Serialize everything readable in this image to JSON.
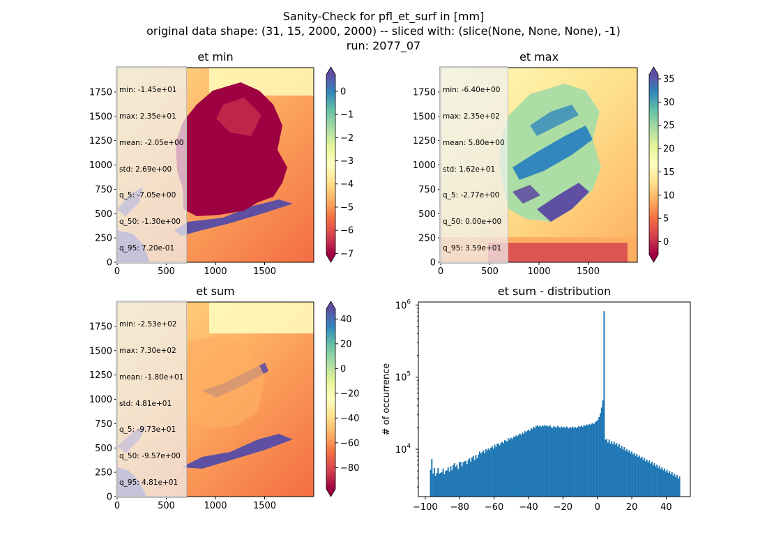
{
  "figure": {
    "title_lines": [
      "Sanity-Check for pfl_et_surf in [mm]",
      "original data shape: (31, 15, 2000, 2000) -- sliced with: (slice(None, None, None), -1)",
      "run: 2077_07"
    ]
  },
  "colors": {
    "spectral": [
      "#9e0142",
      "#d53e4f",
      "#f46d43",
      "#fdae61",
      "#fee08b",
      "#ffffbf",
      "#e6f598",
      "#abdda4",
      "#66c2a5",
      "#3288bd",
      "#5e4fa2"
    ],
    "histogram_bar": "#1f77b4"
  },
  "chart_data": [
    {
      "type": "heatmap",
      "title": "et min",
      "xlim": [
        0,
        2000
      ],
      "ylim": [
        0,
        2000
      ],
      "xticks": [
        "0",
        "500",
        "1000",
        "1500"
      ],
      "yticks": [
        "0",
        "250",
        "500",
        "750",
        "1000",
        "1250",
        "1500",
        "1750"
      ],
      "colorbar": {
        "min": -7.05,
        "max": 0.72,
        "cmap": "Spectral",
        "extend": "both",
        "ticks": [
          0,
          -1,
          -2,
          -3,
          -4,
          -5,
          -6,
          -7
        ],
        "tick_labels": [
          "0",
          "−1",
          "−2",
          "−3",
          "−4",
          "−5",
          "−6",
          "−7"
        ]
      },
      "stats": [
        "min: -1.45e+01",
        "max: 2.35e+01",
        "mean: -2.05e+00",
        "std: 2.69e+00",
        "q_5: -7.05e+00",
        "q_50: -1.30e+00",
        "q_95: 7.20e-01"
      ]
    },
    {
      "type": "heatmap",
      "title": "et max",
      "xlim": [
        0,
        2000
      ],
      "ylim": [
        0,
        2000
      ],
      "xticks": [
        "0",
        "500",
        "1000",
        "1500"
      ],
      "yticks": [
        "0",
        "250",
        "500",
        "750",
        "1000",
        "1250",
        "1500",
        "1750"
      ],
      "colorbar": {
        "min": -2.77,
        "max": 35.9,
        "cmap": "Spectral",
        "extend": "both",
        "ticks": [
          35,
          30,
          25,
          20,
          15,
          10,
          5,
          0
        ],
        "tick_labels": [
          "35",
          "30",
          "25",
          "20",
          "15",
          "10",
          "5",
          "0"
        ]
      },
      "stats": [
        "min: -6.40e+00",
        "max: 2.35e+02",
        "mean: 5.80e+00",
        "std: 1.62e+01",
        "q_5: -2.77e+00",
        "q_50: 0.00e+00",
        "q_95: 3.59e+01"
      ]
    },
    {
      "type": "heatmap",
      "title": "et sum",
      "xlim": [
        0,
        2000
      ],
      "ylim": [
        0,
        2000
      ],
      "xticks": [
        "0",
        "500",
        "1000",
        "1500"
      ],
      "yticks": [
        "0",
        "250",
        "500",
        "750",
        "1000",
        "1250",
        "1500",
        "1750"
      ],
      "colorbar": {
        "min": -97.3,
        "max": 48.1,
        "cmap": "Spectral",
        "extend": "both",
        "ticks": [
          40,
          20,
          0,
          -20,
          -40,
          -60,
          -80
        ],
        "tick_labels": [
          "40",
          "20",
          "0",
          "−20",
          "−40",
          "−60",
          "−80"
        ]
      },
      "stats": [
        "min: -2.53e+02",
        "max: 7.30e+02",
        "mean: -1.80e+01",
        "std: 4.81e+01",
        "q_5: -9.73e+01",
        "q_50: -9.57e+00",
        "q_95: 4.81e+01"
      ]
    },
    {
      "type": "bar",
      "title": "et sum - distribution",
      "ylabel": "# of occurrence",
      "xlabel": "",
      "xlim": [
        -104,
        54
      ],
      "ylog": true,
      "ylim": [
        2200,
        1100000
      ],
      "xticks": [
        -100,
        -80,
        -60,
        -40,
        -20,
        0,
        20,
        40
      ],
      "xtick_labels": [
        "−100",
        "−80",
        "−60",
        "−40",
        "−20",
        "0",
        "20",
        "40"
      ],
      "yticks": [
        10000,
        100000,
        1000000
      ],
      "ytick_labels": [
        [
          "10",
          "4"
        ],
        [
          "10",
          "5"
        ],
        [
          "10",
          "6"
        ]
      ],
      "bins": {
        "start": -97.3,
        "end": 48.1
      },
      "counts": [
        5200,
        7300,
        4600,
        5500,
        4300,
        4700,
        5500,
        4600,
        4700,
        4800,
        5400,
        4500,
        5000,
        5100,
        5600,
        4900,
        5800,
        5100,
        6000,
        6400,
        5700,
        6100,
        5300,
        6600,
        6700,
        5800,
        6600,
        6800,
        6900,
        6200,
        7100,
        7500,
        6700,
        7700,
        8100,
        7100,
        8300,
        7500,
        8400,
        9300,
        8700,
        9100,
        9700,
        8800,
        10000,
        9600,
        10300,
        9800,
        10500,
        11000,
        10200,
        11600,
        10800,
        11900,
        12000,
        11300,
        12300,
        12700,
        12100,
        13400,
        13100,
        12800,
        14200,
        13600,
        14400,
        13900,
        14900,
        14800,
        15500,
        15100,
        15800,
        16500,
        15700,
        17000,
        16400,
        17800,
        17200,
        18100,
        18700,
        17900,
        19600,
        19000,
        20400,
        19700,
        20800,
        21500,
        20600,
        21200,
        20500,
        21300,
        20800,
        21700,
        20900,
        21200,
        20600,
        21500,
        20200,
        19800,
        21000,
        20400,
        19900,
        21100,
        20400,
        19600,
        20700,
        19900,
        20500,
        19500,
        20700,
        20100,
        19400,
        20300,
        19800,
        20600,
        19700,
        20400,
        19600,
        20300,
        20800,
        20500,
        21200,
        20400,
        21600,
        20900,
        22000,
        21400,
        22300,
        21700,
        22600,
        23100,
        22400,
        23800,
        24500,
        25600,
        27900,
        31500,
        37800,
        47500,
        820000,
        13500,
        13900,
        12400,
        13600,
        12000,
        13000,
        11700,
        12700,
        11600,
        12100,
        10900,
        11800,
        10400,
        11200,
        9900,
        10700,
        9500,
        10100,
        9200,
        9700,
        8800,
        9300,
        8500,
        8900,
        8100,
        8600,
        7800,
        8200,
        7500,
        7900,
        7100,
        7600,
        6800,
        7200,
        6600,
        7000,
        6300,
        6700,
        6000,
        6400,
        5800,
        6100,
        5500,
        5900,
        5300,
        5600,
        5100,
        5400,
        4900,
        5200,
        4700,
        5000,
        4500,
        4800,
        4300,
        4600,
        4100,
        4400,
        3900,
        4200
      ]
    }
  ]
}
